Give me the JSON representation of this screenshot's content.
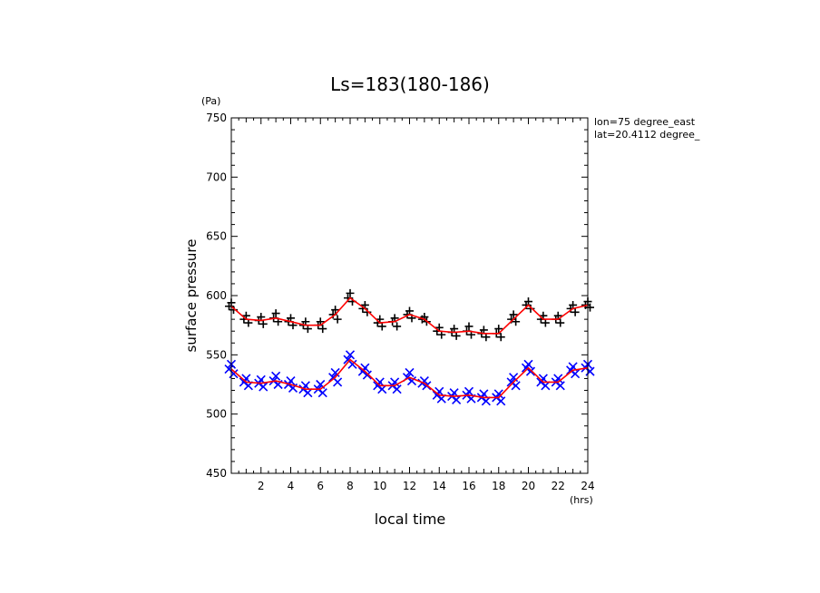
{
  "chart_data": {
    "type": "line",
    "title": "Ls=183(180-186)",
    "xlabel": "local time",
    "xunit": "(hrs)",
    "ylabel": "surface pressure",
    "yunit": "(Pa)",
    "annotations": [
      "lon=75 degree_east",
      "lat=20.4112 degree_"
    ],
    "xlim": [
      0,
      24
    ],
    "ylim": [
      450,
      750
    ],
    "x_ticks": [
      2,
      4,
      6,
      8,
      10,
      12,
      14,
      16,
      18,
      20,
      22,
      24
    ],
    "y_ticks": [
      450,
      500,
      550,
      600,
      650,
      700,
      750
    ],
    "grid": false,
    "x": [
      0,
      1,
      2,
      3,
      4,
      5,
      6,
      7,
      8,
      9,
      10,
      11,
      12,
      13,
      14,
      15,
      16,
      17,
      18,
      19,
      20,
      21,
      22,
      23,
      24
    ],
    "series": [
      {
        "marker": "+",
        "color": "#000000",
        "line_color": "#ff0000",
        "mean": [
          591,
          580,
          579,
          581,
          578,
          575,
          575,
          584,
          598,
          589,
          577,
          578,
          584,
          580,
          570,
          569,
          570,
          568,
          568,
          580,
          592,
          580,
          580,
          589,
          592
        ],
        "points": [
          [
            591,
            594,
            588
          ],
          [
            580,
            583,
            577
          ],
          [
            579,
            582,
            576
          ],
          [
            581,
            585,
            578
          ],
          [
            578,
            581,
            575
          ],
          [
            575,
            578,
            572
          ],
          [
            575,
            578,
            572
          ],
          [
            584,
            588,
            580
          ],
          [
            598,
            602,
            595
          ],
          [
            589,
            592,
            586
          ],
          [
            577,
            580,
            574
          ],
          [
            578,
            581,
            574
          ],
          [
            584,
            587,
            581
          ],
          [
            580,
            582,
            578
          ],
          [
            570,
            573,
            567
          ],
          [
            569,
            572,
            566
          ],
          [
            570,
            574,
            567
          ],
          [
            568,
            571,
            565
          ],
          [
            568,
            572,
            565
          ],
          [
            580,
            584,
            578
          ],
          [
            592,
            595,
            589
          ],
          [
            580,
            583,
            577
          ],
          [
            580,
            583,
            577
          ],
          [
            589,
            592,
            586
          ],
          [
            592,
            595,
            590
          ]
        ]
      },
      {
        "marker": "x",
        "color": "#0000ff",
        "line_color": "#ff0000",
        "mean": [
          538,
          527,
          526,
          528,
          525,
          521,
          521,
          531,
          546,
          536,
          524,
          524,
          531,
          526,
          516,
          515,
          516,
          514,
          514,
          527,
          539,
          527,
          527,
          537,
          539
        ],
        "points": [
          [
            538,
            542,
            534
          ],
          [
            527,
            530,
            524
          ],
          [
            526,
            529,
            523
          ],
          [
            528,
            532,
            525
          ],
          [
            525,
            528,
            522
          ],
          [
            521,
            524,
            518
          ],
          [
            521,
            525,
            518
          ],
          [
            531,
            535,
            527
          ],
          [
            546,
            550,
            542
          ],
          [
            536,
            539,
            533
          ],
          [
            524,
            527,
            521
          ],
          [
            524,
            527,
            521
          ],
          [
            531,
            535,
            528
          ],
          [
            526,
            528,
            524
          ],
          [
            516,
            519,
            513
          ],
          [
            515,
            518,
            512
          ],
          [
            516,
            519,
            513
          ],
          [
            514,
            517,
            511
          ],
          [
            514,
            517,
            511
          ],
          [
            527,
            531,
            524
          ],
          [
            539,
            542,
            536
          ],
          [
            527,
            530,
            524
          ],
          [
            527,
            530,
            524
          ],
          [
            537,
            540,
            534
          ],
          [
            539,
            542,
            536
          ]
        ]
      }
    ]
  }
}
